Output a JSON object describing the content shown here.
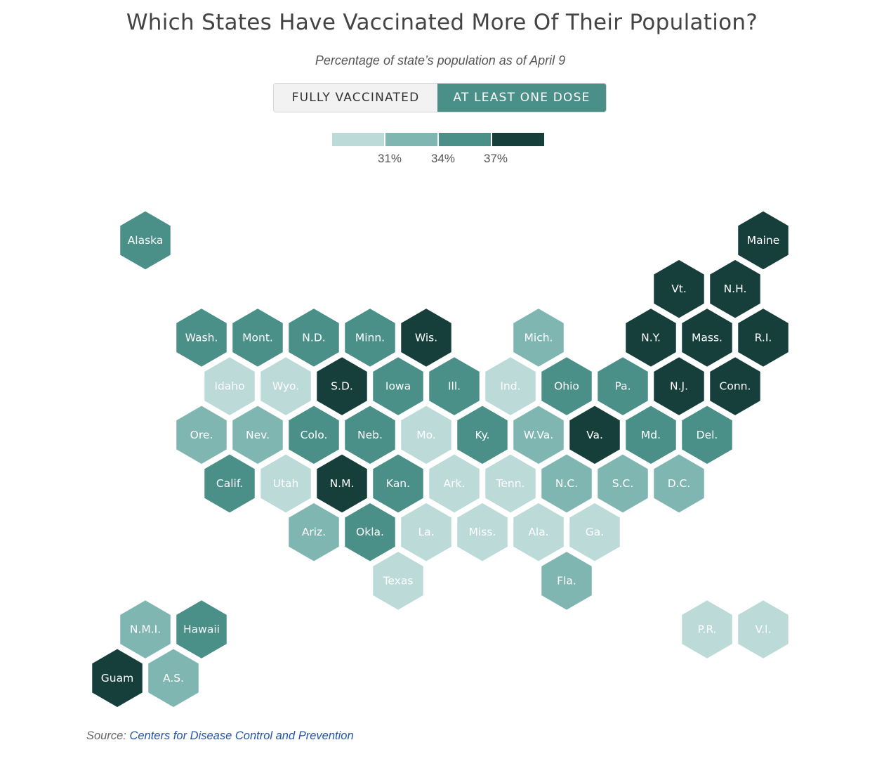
{
  "title": "Which States Have Vaccinated More Of Their Population?",
  "subtitle": "Percentage of state’s population as of April 9",
  "toggle": {
    "fully_label": "FULLY VACCINATED",
    "dose_label": "AT LEAST ONE DOSE",
    "selected": "AT LEAST ONE DOSE"
  },
  "legend": {
    "colors": [
      "#bcdad7",
      "#80b6b1",
      "#4a9089",
      "#163f3c"
    ],
    "labels": [
      "31%",
      "34%",
      "37%"
    ]
  },
  "colors": {
    "accent": "#4a9089",
    "link": "#2255aa"
  },
  "states": [
    {
      "label": "Alaska",
      "row": 0,
      "col": 1,
      "bin": 2
    },
    {
      "label": "Maine",
      "row": 0,
      "col": 12,
      "bin": 3
    },
    {
      "label": "Vt.",
      "row": 1,
      "col": 10.5,
      "bin": 3
    },
    {
      "label": "N.H.",
      "row": 1,
      "col": 11.5,
      "bin": 3
    },
    {
      "label": "Wash.",
      "row": 2,
      "col": 2,
      "bin": 2
    },
    {
      "label": "Mont.",
      "row": 2,
      "col": 3,
      "bin": 2
    },
    {
      "label": "N.D.",
      "row": 2,
      "col": 4,
      "bin": 2
    },
    {
      "label": "Minn.",
      "row": 2,
      "col": 5,
      "bin": 2
    },
    {
      "label": "Wis.",
      "row": 2,
      "col": 6,
      "bin": 3
    },
    {
      "label": "Mich.",
      "row": 2,
      "col": 8,
      "bin": 1
    },
    {
      "label": "N.Y.",
      "row": 2,
      "col": 10,
      "bin": 3
    },
    {
      "label": "Mass.",
      "row": 2,
      "col": 11,
      "bin": 3
    },
    {
      "label": "R.I.",
      "row": 2,
      "col": 12,
      "bin": 3
    },
    {
      "label": "Idaho",
      "row": 3,
      "col": 2.5,
      "bin": 0
    },
    {
      "label": "Wyo.",
      "row": 3,
      "col": 3.5,
      "bin": 0
    },
    {
      "label": "S.D.",
      "row": 3,
      "col": 4.5,
      "bin": 3
    },
    {
      "label": "Iowa",
      "row": 3,
      "col": 5.5,
      "bin": 2
    },
    {
      "label": "Ill.",
      "row": 3,
      "col": 6.5,
      "bin": 2
    },
    {
      "label": "Ind.",
      "row": 3,
      "col": 7.5,
      "bin": 0
    },
    {
      "label": "Ohio",
      "row": 3,
      "col": 8.5,
      "bin": 2
    },
    {
      "label": "Pa.",
      "row": 3,
      "col": 9.5,
      "bin": 2
    },
    {
      "label": "N.J.",
      "row": 3,
      "col": 10.5,
      "bin": 3
    },
    {
      "label": "Conn.",
      "row": 3,
      "col": 11.5,
      "bin": 3
    },
    {
      "label": "Ore.",
      "row": 4,
      "col": 2,
      "bin": 1
    },
    {
      "label": "Nev.",
      "row": 4,
      "col": 3,
      "bin": 1
    },
    {
      "label": "Colo.",
      "row": 4,
      "col": 4,
      "bin": 2
    },
    {
      "label": "Neb.",
      "row": 4,
      "col": 5,
      "bin": 2
    },
    {
      "label": "Mo.",
      "row": 4,
      "col": 6,
      "bin": 0
    },
    {
      "label": "Ky.",
      "row": 4,
      "col": 7,
      "bin": 2
    },
    {
      "label": "W.Va.",
      "row": 4,
      "col": 8,
      "bin": 1
    },
    {
      "label": "Va.",
      "row": 4,
      "col": 9,
      "bin": 3
    },
    {
      "label": "Md.",
      "row": 4,
      "col": 10,
      "bin": 2
    },
    {
      "label": "Del.",
      "row": 4,
      "col": 11,
      "bin": 2
    },
    {
      "label": "Calif.",
      "row": 5,
      "col": 2.5,
      "bin": 2
    },
    {
      "label": "Utah",
      "row": 5,
      "col": 3.5,
      "bin": 0
    },
    {
      "label": "N.M.",
      "row": 5,
      "col": 4.5,
      "bin": 3
    },
    {
      "label": "Kan.",
      "row": 5,
      "col": 5.5,
      "bin": 2
    },
    {
      "label": "Ark.",
      "row": 5,
      "col": 6.5,
      "bin": 0
    },
    {
      "label": "Tenn.",
      "row": 5,
      "col": 7.5,
      "bin": 0
    },
    {
      "label": "N.C.",
      "row": 5,
      "col": 8.5,
      "bin": 1
    },
    {
      "label": "S.C.",
      "row": 5,
      "col": 9.5,
      "bin": 1
    },
    {
      "label": "D.C.",
      "row": 5,
      "col": 10.5,
      "bin": 1
    },
    {
      "label": "Ariz.",
      "row": 6,
      "col": 4,
      "bin": 1
    },
    {
      "label": "Okla.",
      "row": 6,
      "col": 5,
      "bin": 2
    },
    {
      "label": "La.",
      "row": 6,
      "col": 6,
      "bin": 0
    },
    {
      "label": "Miss.",
      "row": 6,
      "col": 7,
      "bin": 0
    },
    {
      "label": "Ala.",
      "row": 6,
      "col": 8,
      "bin": 0
    },
    {
      "label": "Ga.",
      "row": 6,
      "col": 9,
      "bin": 0
    },
    {
      "label": "Texas",
      "row": 7,
      "col": 5.5,
      "bin": 0
    },
    {
      "label": "Fla.",
      "row": 7,
      "col": 8.5,
      "bin": 1
    },
    {
      "label": "N.M.I.",
      "row": 8,
      "col": 1,
      "bin": 1
    },
    {
      "label": "Hawaii",
      "row": 8,
      "col": 2,
      "bin": 2
    },
    {
      "label": "P.R.",
      "row": 8,
      "col": 11,
      "bin": 0
    },
    {
      "label": "V.I.",
      "row": 8,
      "col": 12,
      "bin": 0
    },
    {
      "label": "Guam",
      "row": 9,
      "col": 0.5,
      "bin": 3
    },
    {
      "label": "A.S.",
      "row": 9,
      "col": 1.5,
      "bin": 1
    }
  ],
  "source": {
    "prefix": "Source: ",
    "link_text": "Centers for Disease Control and Prevention"
  }
}
